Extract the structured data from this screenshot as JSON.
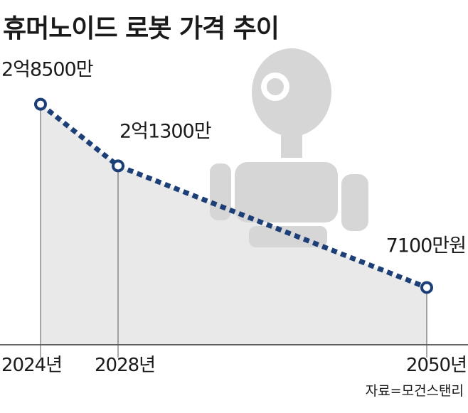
{
  "chart_data": {
    "type": "line",
    "title": "휴머노이드 로봇 가격 추이",
    "categories": [
      "2024년",
      "2028년",
      "2050년"
    ],
    "series": [
      {
        "values": [
          28500,
          21300,
          7100
        ],
        "value_labels": [
          "2억8500만",
          "2억1300만",
          "7100만원"
        ],
        "color": "#1d3f78"
      }
    ],
    "source": "자료=모건스탠리"
  }
}
